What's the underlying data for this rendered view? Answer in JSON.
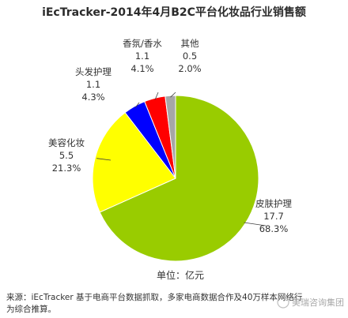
{
  "chart_data": {
    "type": "pie",
    "title": "iEcTracker-2014年4月B2C平台化妆品行业销售额",
    "unit_note": "单位：亿元",
    "source": [
      "来源：iEcTracker 基于电商平台数据抓取，多家电商数据合作及40万样本网络行",
      "为综合推算。"
    ],
    "watermark": "美瑞咨询集团",
    "slices": [
      {
        "name": "皮肤护理",
        "value": 17.7,
        "value_label": "17.7",
        "pct": 68.3,
        "pct_label": "68.3%",
        "color": "#99cc00"
      },
      {
        "name": "美容化妆",
        "value": 5.5,
        "value_label": "5.5",
        "pct": 21.3,
        "pct_label": "21.3%",
        "color": "#ffff00"
      },
      {
        "name": "头发护理",
        "value": 1.1,
        "value_label": "1.1",
        "pct": 4.3,
        "pct_label": "4.3%",
        "color": "#0000ff"
      },
      {
        "name": "香氛/香水",
        "value": 1.1,
        "value_label": "1.1",
        "pct": 4.1,
        "pct_label": "4.1%",
        "color": "#ff0000"
      },
      {
        "name": "其他",
        "value": 0.5,
        "value_label": "0.5",
        "pct": 2.0,
        "pct_label": "2.0%",
        "color": "#a6a6a6"
      }
    ]
  }
}
